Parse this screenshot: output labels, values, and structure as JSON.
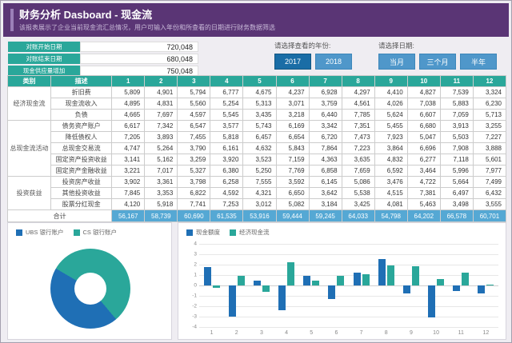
{
  "header": {
    "title": "财务分析 Dasboard - 现金流",
    "subtitle": "该报表展示了企业当前现金流汇总情况，用户可输入年份和所查看的日期进行财务数据筛选"
  },
  "kpis": [
    {
      "label": "对账开始日期",
      "value": "720,048"
    },
    {
      "label": "对账结束日期",
      "value": "680,048"
    },
    {
      "label": "现金供应量增加",
      "value": "750,048"
    }
  ],
  "filters": {
    "year": {
      "label": "请选择查看的年份:",
      "options": [
        "2017",
        "2018"
      ],
      "selected": "2017"
    },
    "period": {
      "label": "请选择日期:",
      "options": [
        "当月",
        "三个月",
        "半年"
      ],
      "selected": ""
    }
  },
  "table": {
    "col_category": "类别",
    "col_desc": "描述",
    "months": [
      "1",
      "2",
      "3",
      "4",
      "5",
      "6",
      "7",
      "8",
      "9",
      "10",
      "11",
      "12"
    ],
    "groups": [
      {
        "category": "经济现金流",
        "rows": [
          {
            "desc": "折旧费",
            "values": [
              5809,
              4901,
              5794,
              6777,
              4675,
              4237,
              6928,
              4297,
              4410,
              4827,
              7539,
              3324
            ]
          },
          {
            "desc": "现金流收入",
            "values": [
              4895,
              4831,
              5560,
              5254,
              5313,
              3071,
              3759,
              4561,
              4026,
              7038,
              5883,
              6230
            ]
          },
          {
            "desc": "负债",
            "values": [
              4665,
              7697,
              4597,
              5545,
              3435,
              3218,
              6440,
              7785,
              5624,
              6607,
              7059,
              5713
            ]
          }
        ]
      },
      {
        "category": "总现金流活动",
        "rows": [
          {
            "desc": "债务资产账户",
            "values": [
              6617,
              7342,
              6547,
              3577,
              5743,
              6169,
              3342,
              7351,
              5455,
              6680,
              3913,
              3255
            ]
          },
          {
            "desc": "降低债权人",
            "values": [
              7205,
              3893,
              7455,
              5818,
              6457,
              6654,
              6720,
              7473,
              7923,
              5047,
              5503,
              7227
            ]
          },
          {
            "desc": "总现金交易流",
            "values": [
              4747,
              5264,
              3790,
              6161,
              4632,
              5843,
              7864,
              7223,
              3864,
              6696,
              7908,
              3888
            ]
          },
          {
            "desc": "固定资产投资收益",
            "values": [
              3141,
              5162,
              3259,
              3920,
              3523,
              7159,
              4363,
              3635,
              4832,
              6277,
              7118,
              5601
            ]
          },
          {
            "desc": "固定资产金融收益",
            "values": [
              3221,
              7017,
              5327,
              6380,
              5250,
              7769,
              6858,
              7659,
              6592,
              3464,
              5996,
              7977
            ]
          }
        ]
      },
      {
        "category": "投资获益",
        "rows": [
          {
            "desc": "投资房产收益",
            "values": [
              3902,
              3361,
              3798,
              6258,
              7555,
              3592,
              6145,
              5086,
              3476,
              4722,
              5664,
              7499
            ]
          },
          {
            "desc": "其他投资收益",
            "values": [
              7845,
              3353,
              6822,
              4592,
              4321,
              6650,
              3642,
              5538,
              4515,
              7381,
              6497,
              6432
            ]
          },
          {
            "desc": "股票分红现金",
            "values": [
              4120,
              5918,
              7741,
              7253,
              3012,
              5082,
              3184,
              3425,
              4081,
              5463,
              3498,
              3555
            ]
          }
        ]
      }
    ],
    "total": {
      "label": "合计",
      "values": [
        56167,
        58739,
        60690,
        61535,
        53916,
        59444,
        59245,
        64033,
        54798,
        64202,
        66578,
        60701
      ]
    }
  },
  "chart_data": [
    {
      "type": "pie",
      "donut": true,
      "rotation_deg": 140,
      "legend_position": "top",
      "slices": [
        {
          "label": "UBS 银行账户",
          "value": 44.5,
          "color": "#1f6fb5"
        },
        {
          "label": "CS 银行账户",
          "value": 55.5,
          "color": "#2aa79a"
        }
      ]
    },
    {
      "type": "bar",
      "categories": [
        "1",
        "2",
        "3",
        "4",
        "5",
        "6",
        "7",
        "8",
        "9",
        "10",
        "11",
        "12"
      ],
      "series": [
        {
          "name": "现金额度",
          "color": "#1f6fb5",
          "values": [
            1.8,
            -3.0,
            0.45,
            -2.35,
            0.95,
            -1.3,
            1.2,
            2.55,
            -0.8,
            -3.1,
            -0.5,
            -0.8
          ]
        },
        {
          "name": "经济现金流",
          "color": "#2aa79a",
          "values": [
            -0.2,
            0.95,
            -0.6,
            2.2,
            0.5,
            0.9,
            1.05,
            1.95,
            1.85,
            0.65,
            1.2,
            0.05
          ]
        }
      ],
      "ylim": [
        -4,
        4
      ],
      "yticks": [
        4,
        3,
        2,
        1,
        0,
        -1,
        -2,
        -3,
        -4
      ],
      "grid": true,
      "legend_position": "top"
    }
  ],
  "colors": {
    "banner": "#5a3575",
    "banner_accent": "#9b7fb8",
    "teal": "#2aa79a",
    "button_blue": "#4f97ca",
    "button_blue_selected": "#1a6da6",
    "total_row": "#55a8d4",
    "bar_blue": "#1f6fb5",
    "bar_teal": "#2aa79a"
  }
}
